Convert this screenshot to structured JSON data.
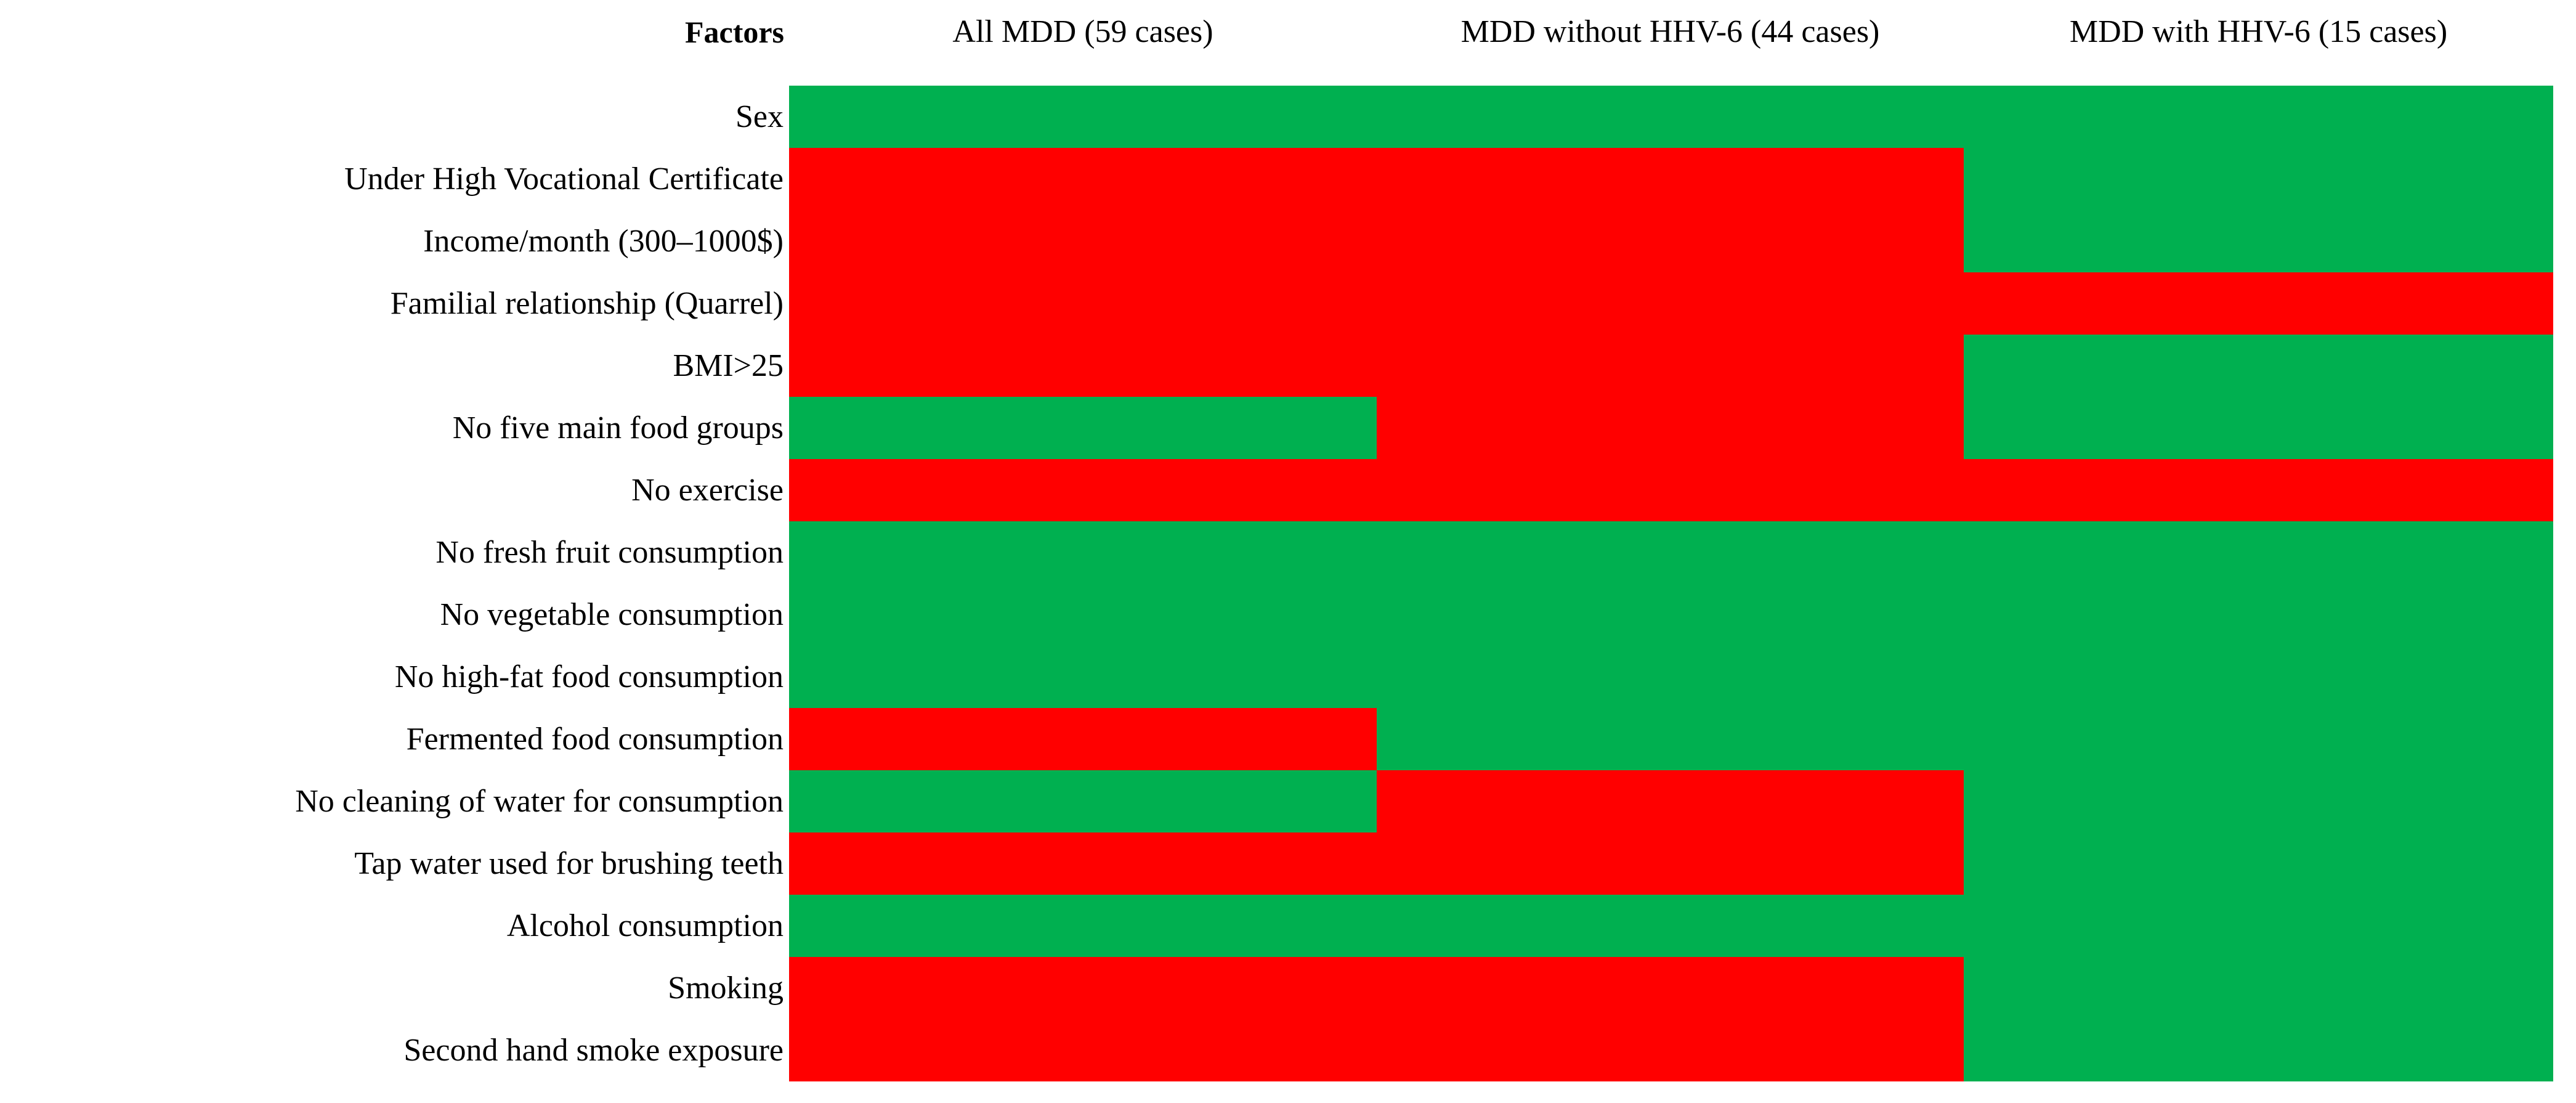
{
  "header": {
    "factors_label": "Factors",
    "columns": [
      "All MDD (59 cases)",
      "MDD without HHV-6 (44 cases)",
      "MDD with HHV-6 (15 cases)"
    ]
  },
  "colors": {
    "green": "#00B050",
    "red": "#FF0000"
  },
  "chart_data": {
    "type": "heatmap",
    "title": "",
    "columns": [
      "All MDD (59 cases)",
      "MDD without HHV-6 (44 cases)",
      "MDD with HHV-6 (15 cases)"
    ],
    "rows": [
      "Sex",
      "Under High Vocational Certificate",
      "Income/month (300–1000$)",
      "Familial relationship (Quarrel)",
      "BMI>25",
      "No five main food groups",
      "No exercise",
      "No fresh fruit consumption",
      "No vegetable consumption",
      "No high-fat food consumption",
      "Fermented food consumption",
      "No cleaning of water for consumption",
      "Tap water used for brushing teeth",
      "Alcohol consumption",
      "Smoking",
      "Second hand smoke exposure"
    ],
    "cells": [
      [
        "green",
        "green",
        "green"
      ],
      [
        "red",
        "red",
        "green"
      ],
      [
        "red",
        "red",
        "green"
      ],
      [
        "red",
        "red",
        "red"
      ],
      [
        "red",
        "red",
        "green"
      ],
      [
        "green",
        "red",
        "green"
      ],
      [
        "red",
        "red",
        "red"
      ],
      [
        "green",
        "green",
        "green"
      ],
      [
        "green",
        "green",
        "green"
      ],
      [
        "green",
        "green",
        "green"
      ],
      [
        "red",
        "green",
        "green"
      ],
      [
        "green",
        "red",
        "green"
      ],
      [
        "red",
        "red",
        "green"
      ],
      [
        "green",
        "green",
        "green"
      ],
      [
        "red",
        "red",
        "green"
      ],
      [
        "red",
        "red",
        "green"
      ]
    ],
    "cell_color_legend": {
      "green": "#00B050",
      "red": "#FF0000"
    },
    "layout": {
      "grid": "off",
      "row_label_position": "left",
      "column_header_position": "top"
    }
  }
}
